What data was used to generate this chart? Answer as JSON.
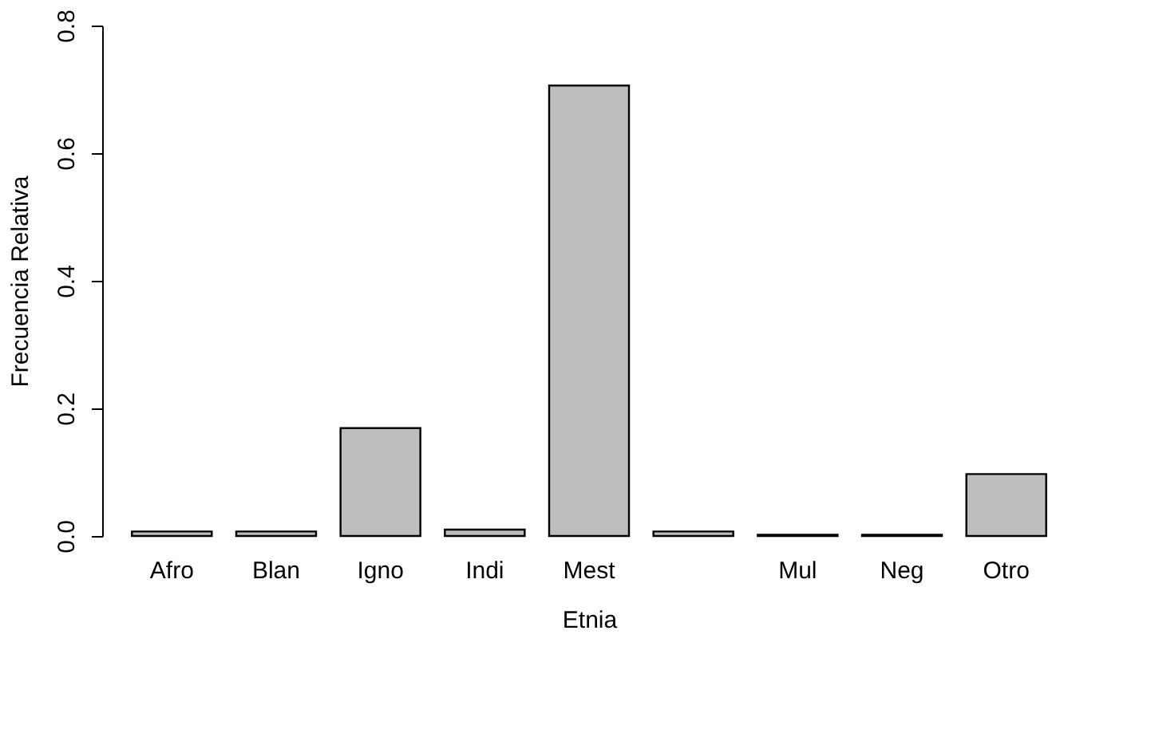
{
  "chart_data": {
    "type": "bar",
    "xlabel": "Etnia",
    "ylabel": "Frecuencia Relativa",
    "categories": [
      "Afro",
      "Blan",
      "Igno",
      "Indi",
      "Mest",
      null,
      "Mul",
      "Neg",
      "Otro"
    ],
    "values": [
      0.007,
      0.007,
      0.169,
      0.01,
      0.706,
      0.007,
      0.002,
      0.002,
      0.097
    ],
    "color": "#bebebe",
    "ylim": [
      0,
      0.8
    ],
    "yticks": [
      {
        "value": 0,
        "label": "0.0"
      },
      0.2,
      0.4,
      0.6,
      0.8
    ],
    "grid": false
  }
}
